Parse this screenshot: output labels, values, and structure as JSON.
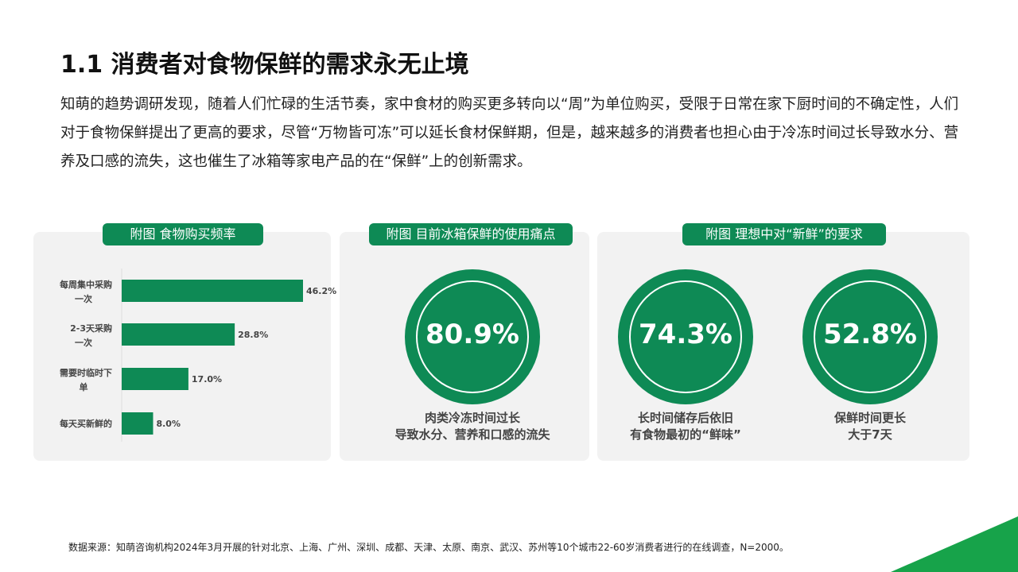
{
  "title": "1.1  消费者对食物保鲜的需求永无止境",
  "intro": "知萌的趋势调研发现，随着人们忙碌的生活节奏，家中食材的购买更多转向以“周”为单位购买，受限于日常在家下厨时间的不确定性，人们对于食物保鲜提出了更高的要求，尽管“万物皆可冻”可以延长食材保鲜期，但是，越来越多的消费者也担心由于冷冻时间过长导致水分、营养及口感的流失，这也催生了冰箱等家电产品的在“保鲜”上的创新需求。",
  "panels": [
    {
      "label": "附图 食物购买频率"
    },
    {
      "label": "附图 目前冰箱保鲜的使用痛点"
    },
    {
      "label": "附图 理想中对“新鲜”的要求"
    }
  ],
  "stats": [
    {
      "value": "80.9%",
      "caption_1": "肉类冷冻时间过长",
      "caption_2": "导致水分、营养和口感的流失"
    },
    {
      "value": "74.3%",
      "caption_1": "长时间储存后依旧",
      "caption_2": "有食物最初的“鲜味”"
    },
    {
      "value": "52.8%",
      "caption_1": "保鲜时间更长",
      "caption_2": "大于7天"
    }
  ],
  "chart_data": {
    "type": "bar",
    "orientation": "horizontal",
    "title": "附图 食物购买频率",
    "categories": [
      "每周集中采购一次",
      "2-3天采购一次",
      "需要时临时下单",
      "每天买新鲜的"
    ],
    "values": [
      46.2,
      28.8,
      17.0,
      8.0
    ],
    "labels": [
      "46.2%",
      "28.8%",
      "17.0%",
      "8.0%"
    ],
    "unit": "%",
    "grid": false,
    "color": "#0e8a55"
  },
  "source": "数据来源：知萌咨询机构2024年3月开展的针对北京、上海、广州、深圳、成都、天津、太原、南京、武汉、苏州等10个城市22-60岁消费者进行的在线调查，N=2000。",
  "colors": {
    "accent": "#0e8a55",
    "corner": "#17a34a"
  }
}
